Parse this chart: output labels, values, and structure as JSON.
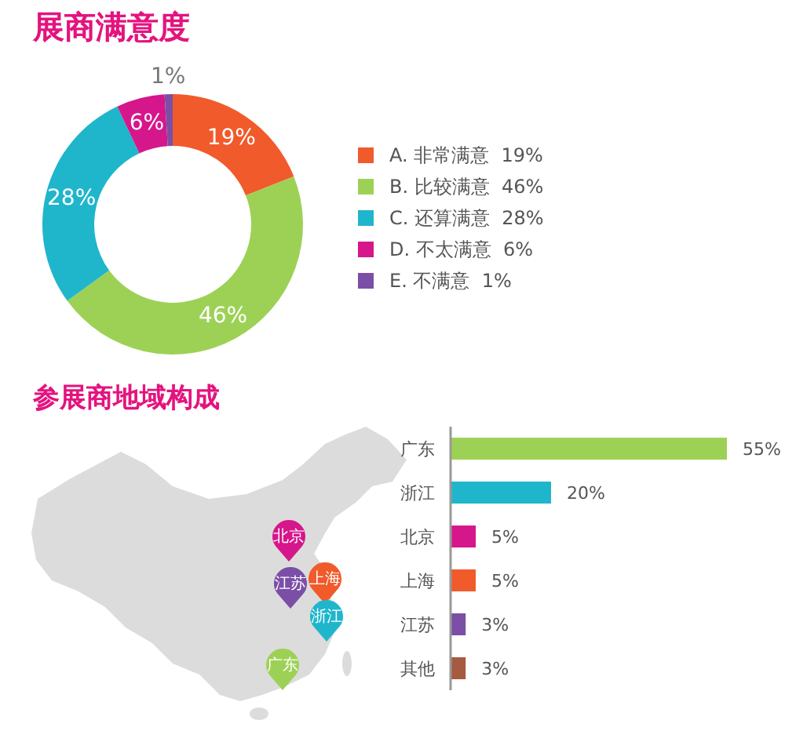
{
  "chart_data": [
    {
      "type": "donut",
      "title": "展商满意度",
      "categories": [
        "A. 非常满意",
        "B. 比较满意",
        "C. 还算满意",
        "D. 不太满意",
        "E. 不满意"
      ],
      "values": [
        19,
        46,
        28,
        6,
        1
      ],
      "value_labels": [
        "19%",
        "46%",
        "28%",
        "6%",
        "1%"
      ],
      "colors": [
        "#f15a2b",
        "#9dd156",
        "#1fb6cc",
        "#d6168b",
        "#7b4fa6"
      ],
      "legend": "right"
    },
    {
      "type": "other",
      "title": "参展商地域构成",
      "annotations": [
        "北京",
        "江苏",
        "上海",
        "浙江",
        "广东"
      ],
      "colors": [
        "#d6168b",
        "#7b4fa6",
        "#f15a2b",
        "#1fb6cc",
        "#9dd156"
      ]
    },
    {
      "type": "bar",
      "orientation": "horizontal",
      "categories": [
        "广东",
        "浙江",
        "北京",
        "上海",
        "江苏",
        "其他"
      ],
      "values": [
        55,
        20,
        5,
        5,
        3,
        3
      ],
      "value_labels": [
        "55%",
        "20%",
        "5%",
        "5%",
        "3%",
        "3%"
      ],
      "colors": [
        "#9dd156",
        "#1fb6cc",
        "#d6168b",
        "#f15a2b",
        "#7b4fa6",
        "#a65a40"
      ],
      "xlim": [
        0,
        55
      ],
      "tick_labels": "y"
    }
  ]
}
